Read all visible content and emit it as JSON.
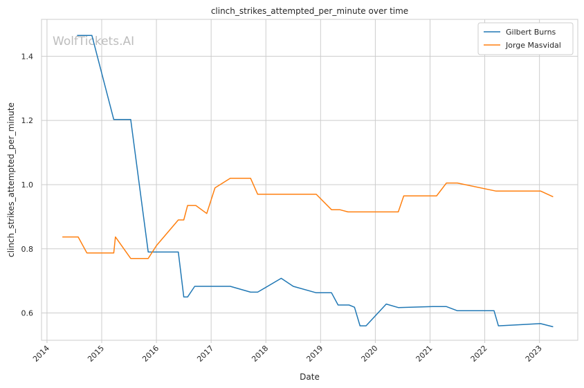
{
  "chart_data": {
    "type": "line",
    "title": "clinch_strikes_attempted_per_minute over time",
    "xlabel": "Date",
    "ylabel": "clinch_strikes_attempted_per_minute",
    "xlim": [
      2013.9,
      2023.7
    ],
    "ylim": [
      0.515,
      1.515
    ],
    "x_ticks": [
      "2014",
      "2015",
      "2016",
      "2017",
      "2018",
      "2019",
      "2020",
      "2021",
      "2022",
      "2023"
    ],
    "y_ticks": [
      0.6,
      0.8,
      1.0,
      1.2,
      1.4
    ],
    "grid": true,
    "legend_position": "top-right",
    "watermark": "WolfTickets.AI",
    "series": [
      {
        "name": "Gilbert Burns",
        "color": "#1f77b4",
        "x": [
          2014.55,
          2014.82,
          2015.22,
          2015.53,
          2015.85,
          2015.92,
          2016.4,
          2016.5,
          2016.57,
          2016.7,
          2017.0,
          2017.35,
          2017.72,
          2017.85,
          2018.28,
          2018.5,
          2018.92,
          2019.2,
          2019.32,
          2019.52,
          2019.62,
          2019.72,
          2019.83,
          2020.2,
          2020.42,
          2021.05,
          2021.3,
          2021.5,
          2022.17,
          2022.25,
          2023.02,
          2023.25
        ],
        "y": [
          1.465,
          1.465,
          1.203,
          1.203,
          0.79,
          0.79,
          0.79,
          0.65,
          0.65,
          0.683,
          0.683,
          0.683,
          0.665,
          0.665,
          0.708,
          0.683,
          0.663,
          0.663,
          0.625,
          0.625,
          0.618,
          0.56,
          0.56,
          0.628,
          0.617,
          0.62,
          0.62,
          0.607,
          0.607,
          0.56,
          0.567,
          0.557
        ]
      },
      {
        "name": "Jorge Masvidal",
        "color": "#ff7f0e",
        "x": [
          2014.28,
          2014.57,
          2014.73,
          2015.22,
          2015.25,
          2015.53,
          2015.85,
          2016.0,
          2016.4,
          2016.5,
          2016.57,
          2016.72,
          2016.92,
          2017.07,
          2017.35,
          2017.72,
          2017.85,
          2018.92,
          2019.2,
          2019.35,
          2019.5,
          2019.75,
          2020.42,
          2020.52,
          2021.12,
          2021.3,
          2021.5,
          2022.2,
          2023.02,
          2023.25
        ],
        "y": [
          0.837,
          0.837,
          0.787,
          0.787,
          0.837,
          0.77,
          0.77,
          0.81,
          0.89,
          0.89,
          0.935,
          0.935,
          0.91,
          0.99,
          1.02,
          1.02,
          0.97,
          0.97,
          0.922,
          0.922,
          0.915,
          0.915,
          0.915,
          0.965,
          0.965,
          1.005,
          1.005,
          0.98,
          0.98,
          0.962
        ]
      }
    ]
  }
}
